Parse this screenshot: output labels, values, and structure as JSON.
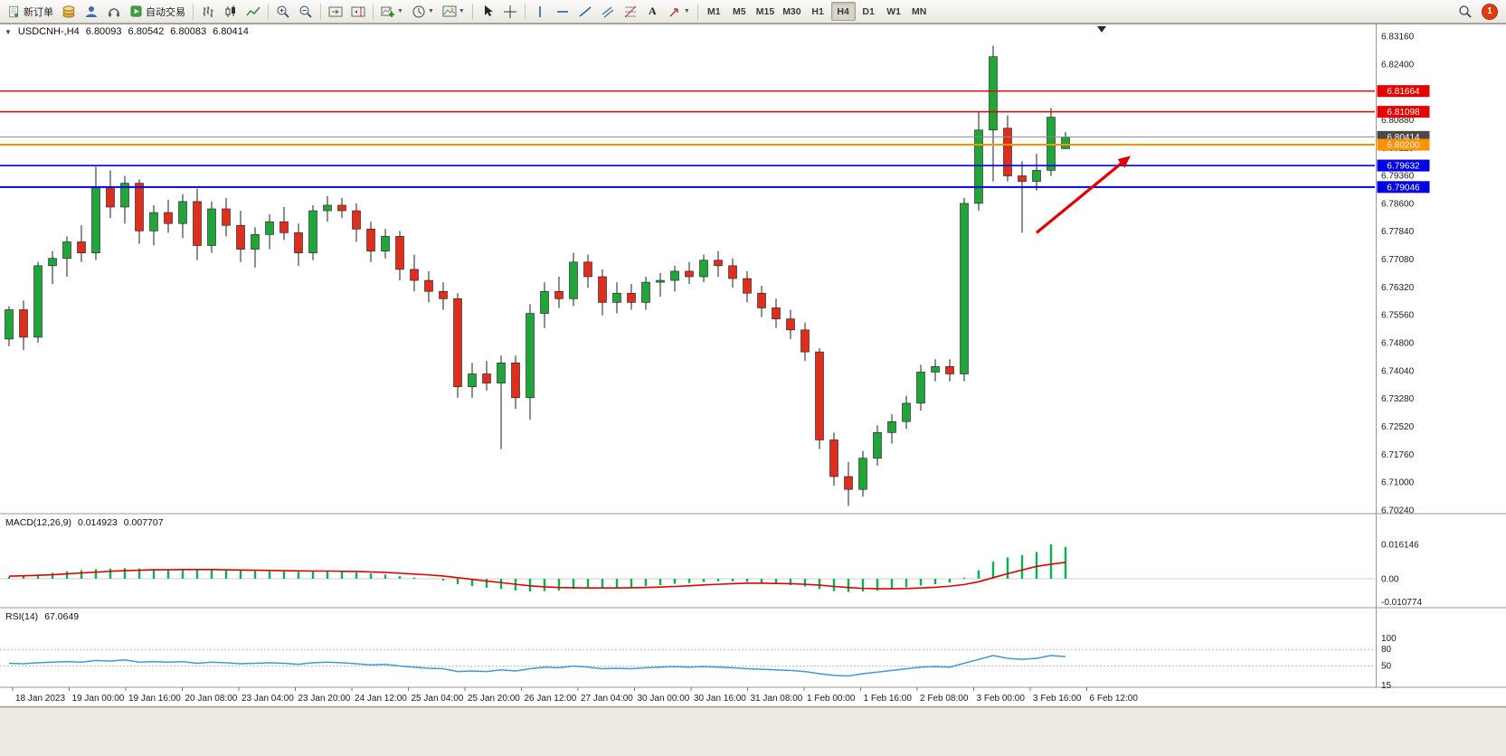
{
  "toolbar": {
    "new_order": "新订单",
    "auto_trading": "自动交易",
    "timeframes": [
      "M1",
      "M5",
      "M15",
      "M30",
      "H1",
      "H4",
      "D1",
      "W1",
      "MN"
    ],
    "active_timeframe": "H4",
    "notification_count": "1"
  },
  "chart": {
    "symbol": "USDCNH-,H4",
    "open": "6.80093",
    "high": "6.80542",
    "low": "6.80083",
    "close": "6.80414",
    "price_axis": [
      "6.83160",
      "6.82400",
      "6.81640",
      "6.80880",
      "6.80120",
      "6.79360",
      "6.78600",
      "6.77840",
      "6.77080",
      "6.76320",
      "6.75560",
      "6.74800",
      "6.74040",
      "6.73280",
      "6.72520",
      "6.71760",
      "6.71000",
      "6.70240"
    ],
    "levels": [
      {
        "name": "resistance-1",
        "price": 6.81664,
        "label": "6.81664",
        "line": "#e60000",
        "badge": "#e60000",
        "width": 1.4
      },
      {
        "name": "resistance-2",
        "price": 6.81098,
        "label": "6.81098",
        "line": "#e60000",
        "badge": "#e60000",
        "width": 1.4
      },
      {
        "name": "bid-line",
        "price": 6.80414,
        "label": "6.80414",
        "line": "#8a8a8a",
        "badge": "#4a4a4a",
        "width": 1
      },
      {
        "name": "pivot-line",
        "price": 6.802,
        "label": "6.80200",
        "line": "#ff9000",
        "badge": "#ff9000",
        "width": 2
      },
      {
        "name": "support-1",
        "price": 6.79632,
        "label": "6.79632",
        "line": "#0000e6",
        "badge": "#0000e6",
        "width": 1.6
      },
      {
        "name": "support-2",
        "price": 6.79046,
        "label": "6.79046",
        "line": "#0000e6",
        "badge": "#0000e6",
        "width": 2
      }
    ],
    "time_axis": [
      "18 Jan 2023",
      "19 Jan 00:00",
      "19 Jan 16:00",
      "20 Jan 08:00",
      "23 Jan 04:00",
      "23 Jan 20:00",
      "24 Jan 12:00",
      "25 Jan 04:00",
      "25 Jan 20:00",
      "26 Jan 12:00",
      "27 Jan 04:00",
      "30 Jan 00:00",
      "30 Jan 16:00",
      "31 Jan 08:00",
      "1 Feb 00:00",
      "1 Feb 16:00",
      "2 Feb 08:00",
      "3 Feb 00:00",
      "3 Feb 16:00",
      "6 Feb 12:00"
    ]
  },
  "macd": {
    "title": "MACD(12,26,9)",
    "value_main": "0.014923",
    "value_signal": "0.007707",
    "axis": [
      "0.016146",
      "0.00",
      "-0.010774"
    ]
  },
  "rsi": {
    "title": "RSI(14)",
    "value": "67.0649",
    "axis": [
      "100",
      "80",
      "50",
      "15"
    ]
  },
  "chart_data": {
    "type": "candlestick-with-indicators",
    "symbol": "USDCNH",
    "period": "H4",
    "up_color": "#21a53a",
    "down_color": "#dd2f1e",
    "macd_color": "#00b64e",
    "signal_color": "#e60000",
    "rsi_color": "#3b9ae1",
    "candles": [
      [
        6.749,
        6.758,
        6.747,
        6.757
      ],
      [
        6.757,
        6.7595,
        6.746,
        6.7495
      ],
      [
        6.7495,
        6.77,
        6.748,
        6.769
      ],
      [
        6.769,
        6.773,
        6.764,
        6.771
      ],
      [
        6.771,
        6.777,
        6.766,
        6.7755
      ],
      [
        6.7755,
        6.78,
        6.77,
        6.7725
      ],
      [
        6.7725,
        6.796,
        6.7705,
        6.7905
      ],
      [
        6.7905,
        6.795,
        6.782,
        6.785
      ],
      [
        6.785,
        6.7935,
        6.7805,
        6.7915
      ],
      [
        6.7915,
        6.7925,
        6.775,
        6.7785
      ],
      [
        6.7785,
        6.7855,
        6.7745,
        6.7835
      ],
      [
        6.7835,
        6.787,
        6.778,
        6.7805
      ],
      [
        6.7805,
        6.7885,
        6.7765,
        6.7865
      ],
      [
        6.7865,
        6.79,
        6.7705,
        6.7745
      ],
      [
        6.7745,
        6.7865,
        6.7725,
        6.7845
      ],
      [
        6.7845,
        6.7875,
        6.777,
        6.78
      ],
      [
        6.78,
        6.784,
        6.77,
        6.7735
      ],
      [
        6.7735,
        6.7795,
        6.7685,
        6.7775
      ],
      [
        6.7775,
        6.783,
        6.7735,
        6.781
      ],
      [
        6.781,
        6.785,
        6.776,
        6.778
      ],
      [
        6.778,
        6.7805,
        6.769,
        6.7725
      ],
      [
        6.7725,
        6.7855,
        6.7705,
        6.784
      ],
      [
        6.784,
        6.788,
        6.781,
        6.7855
      ],
      [
        6.7855,
        6.7875,
        6.782,
        6.784
      ],
      [
        6.784,
        6.786,
        6.7755,
        6.779
      ],
      [
        6.779,
        6.781,
        6.77,
        6.773
      ],
      [
        6.773,
        6.779,
        6.771,
        6.777
      ],
      [
        6.777,
        6.7785,
        6.765,
        6.768
      ],
      [
        6.768,
        6.772,
        6.762,
        6.765
      ],
      [
        6.765,
        6.7675,
        6.759,
        6.762
      ],
      [
        6.762,
        6.7645,
        6.757,
        6.76
      ],
      [
        6.76,
        6.7615,
        6.733,
        6.736
      ],
      [
        6.736,
        6.7425,
        6.733,
        6.7395
      ],
      [
        6.7395,
        6.743,
        6.735,
        6.737
      ],
      [
        6.737,
        6.7445,
        6.719,
        6.7425
      ],
      [
        6.7425,
        6.7445,
        6.73,
        6.733
      ],
      [
        6.733,
        6.7585,
        6.727,
        6.756
      ],
      [
        6.756,
        6.7645,
        6.752,
        6.762
      ],
      [
        6.762,
        6.766,
        6.7575,
        6.76
      ],
      [
        6.76,
        6.7725,
        6.758,
        6.77
      ],
      [
        6.77,
        6.772,
        6.763,
        6.766
      ],
      [
        6.766,
        6.768,
        6.7555,
        6.759
      ],
      [
        6.759,
        6.7645,
        6.756,
        6.7615
      ],
      [
        6.7615,
        6.764,
        6.757,
        6.759
      ],
      [
        6.759,
        6.766,
        6.757,
        6.7645
      ],
      [
        6.7645,
        6.767,
        6.7605,
        6.765
      ],
      [
        6.765,
        6.769,
        6.762,
        6.7675
      ],
      [
        6.7675,
        6.77,
        6.764,
        6.766
      ],
      [
        6.766,
        6.772,
        6.7645,
        6.7705
      ],
      [
        6.7705,
        6.773,
        6.766,
        6.769
      ],
      [
        6.769,
        6.771,
        6.763,
        6.7655
      ],
      [
        6.7655,
        6.7675,
        6.759,
        6.7615
      ],
      [
        6.7615,
        6.7635,
        6.755,
        6.7575
      ],
      [
        6.7575,
        6.76,
        6.752,
        6.7545
      ],
      [
        6.7545,
        6.757,
        6.749,
        6.7515
      ],
      [
        6.7515,
        6.7535,
        6.743,
        6.7455
      ],
      [
        6.7455,
        6.7465,
        6.719,
        6.7215
      ],
      [
        6.7215,
        6.7235,
        6.709,
        6.7115
      ],
      [
        6.7115,
        6.7155,
        6.7035,
        6.708
      ],
      [
        6.708,
        6.7185,
        6.706,
        6.7165
      ],
      [
        6.7165,
        6.7255,
        6.7145,
        6.7235
      ],
      [
        6.7235,
        6.7285,
        6.7205,
        6.7265
      ],
      [
        6.7265,
        6.7335,
        6.7245,
        6.7315
      ],
      [
        6.7315,
        6.742,
        6.7295,
        6.74
      ],
      [
        6.74,
        6.7435,
        6.7375,
        6.7415
      ],
      [
        6.7415,
        6.7435,
        6.7375,
        6.7395
      ],
      [
        6.7395,
        6.7875,
        6.7375,
        6.786
      ],
      [
        6.786,
        6.811,
        6.784,
        6.806
      ],
      [
        6.806,
        6.829,
        6.792,
        6.826
      ],
      [
        6.8065,
        6.81,
        6.792,
        6.7935
      ],
      [
        6.7935,
        6.7975,
        6.778,
        6.792
      ],
      [
        6.792,
        6.7995,
        6.7895,
        6.795
      ],
      [
        6.795,
        6.812,
        6.7935,
        6.8095
      ],
      [
        6.80093,
        6.80542,
        6.80083,
        6.80414
      ]
    ],
    "macd_histogram": [
      0.001,
      0.0015,
      0.002,
      0.0028,
      0.0035,
      0.004,
      0.0045,
      0.0048,
      0.005,
      0.0048,
      0.0046,
      0.0044,
      0.0045,
      0.0043,
      0.0042,
      0.004,
      0.0038,
      0.0036,
      0.0035,
      0.0034,
      0.0032,
      0.0033,
      0.0034,
      0.0033,
      0.003,
      0.0025,
      0.002,
      0.0012,
      0.0006,
      0,
      -0.0008,
      -0.0025,
      -0.0035,
      -0.0042,
      -0.0048,
      -0.0055,
      -0.006,
      -0.0058,
      -0.0055,
      -0.0048,
      -0.0045,
      -0.0045,
      -0.0042,
      -0.004,
      -0.0035,
      -0.003,
      -0.0024,
      -0.002,
      -0.0015,
      -0.0012,
      -0.0012,
      -0.0015,
      -0.002,
      -0.0025,
      -0.003,
      -0.0036,
      -0.0048,
      -0.0058,
      -0.0062,
      -0.006,
      -0.0055,
      -0.0048,
      -0.004,
      -0.0032,
      -0.0026,
      -0.0018,
      0.0005,
      0.004,
      0.008,
      0.01,
      0.011,
      0.0125,
      0.016146,
      0.014923
    ],
    "macd_signal": [
      0.0012,
      0.0014,
      0.0016,
      0.0019,
      0.0023,
      0.0027,
      0.0031,
      0.0035,
      0.0038,
      0.004,
      0.0042,
      0.0042,
      0.0043,
      0.0043,
      0.0043,
      0.0042,
      0.0041,
      0.004,
      0.0039,
      0.0038,
      0.0037,
      0.0036,
      0.0036,
      0.0035,
      0.0034,
      0.0032,
      0.003,
      0.0026,
      0.0022,
      0.0018,
      0.0013,
      0.0005,
      -0.0003,
      -0.0011,
      -0.0018,
      -0.0026,
      -0.0033,
      -0.0038,
      -0.0041,
      -0.0042,
      -0.0043,
      -0.0043,
      -0.0043,
      -0.0042,
      -0.0041,
      -0.0039,
      -0.0036,
      -0.0033,
      -0.0029,
      -0.0026,
      -0.0023,
      -0.0021,
      -0.0021,
      -0.0022,
      -0.0023,
      -0.0026,
      -0.003,
      -0.0036,
      -0.0041,
      -0.0045,
      -0.0047,
      -0.0047,
      -0.0046,
      -0.0043,
      -0.004,
      -0.0035,
      -0.0027,
      -0.0014,
      0.0005,
      0.0024,
      0.0041,
      0.0058,
      0.0068,
      0.007707
    ],
    "rsi": [
      55,
      54,
      56,
      57,
      58,
      57,
      60,
      59,
      61,
      57,
      58,
      57,
      58,
      55,
      57,
      56,
      54,
      55,
      56,
      55,
      53,
      56,
      57,
      56,
      54,
      52,
      53,
      50,
      48,
      46,
      45,
      40,
      41,
      40,
      43,
      41,
      45,
      48,
      47,
      50,
      48,
      45,
      46,
      45,
      47,
      48,
      49,
      48,
      49,
      48,
      47,
      45,
      44,
      43,
      42,
      40,
      36,
      33,
      32,
      36,
      39,
      42,
      45,
      48,
      49,
      48,
      55,
      62,
      69,
      64,
      62,
      64,
      69,
      67.06
    ],
    "annotation_arrow": {
      "from": {
        "bar": 71,
        "price": 6.778
      },
      "to": {
        "bar": 77.5,
        "price": 6.799
      },
      "color": "#e60000"
    }
  }
}
